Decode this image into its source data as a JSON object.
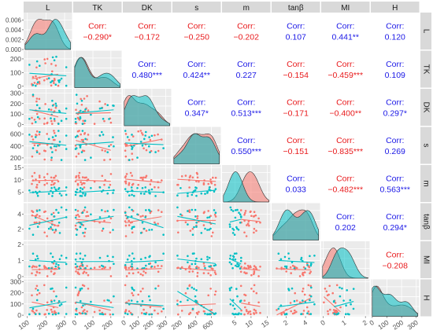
{
  "chart_data": {
    "type": "scatter_matrix",
    "variables": [
      "L",
      "TK",
      "DK",
      "s",
      "m",
      "tanβ",
      "MI",
      "H"
    ],
    "ranges": [
      [
        80,
        340
      ],
      [
        -10,
        260
      ],
      [
        -10,
        340
      ],
      [
        100,
        720
      ],
      [
        1,
        16
      ],
      [
        0.5,
        5.5
      ],
      [
        -0.1,
        2.2
      ],
      [
        -10,
        320
      ]
    ],
    "tick_labels": {
      "L": [
        "100",
        "200",
        "300"
      ],
      "TK": [
        "0",
        "100",
        "200"
      ],
      "DK": [
        "0",
        "100",
        "200",
        "300"
      ],
      "s": [
        "200",
        "400",
        "600"
      ],
      "m": [
        "5",
        "10",
        "15"
      ],
      "tanβ": [
        "2",
        "4"
      ],
      "MI": [
        "0",
        "1",
        "2"
      ],
      "H": [
        "0",
        "100",
        "200",
        "300"
      ]
    },
    "tick_values": {
      "L": [
        100,
        200,
        300
      ],
      "TK": [
        0,
        100,
        200
      ],
      "DK": [
        0,
        100,
        200,
        300
      ],
      "s": [
        200,
        400,
        600
      ],
      "m": [
        5,
        10,
        15
      ],
      "tanβ": [
        2,
        4
      ],
      "MI": [
        0,
        1,
        2
      ],
      "H": [
        0,
        100,
        200,
        300
      ]
    },
    "left_ticks": {
      "L": [
        "0.000",
        "0.002",
        "0.004",
        "0.006"
      ],
      "TK": [
        "0",
        "100",
        "200"
      ],
      "DK": [
        "0",
        "100",
        "200",
        "300"
      ],
      "s": [
        "200",
        "400",
        "600"
      ],
      "m": [
        "5",
        "10",
        "15"
      ],
      "tanβ": [
        "2",
        "4"
      ],
      "MI": [
        "0",
        "1",
        "2"
      ],
      "H": [
        "0",
        "100",
        "200",
        "300"
      ]
    },
    "density_ticks": [
      0.0,
      0.002,
      0.004,
      0.006
    ],
    "density_max": 0.0075,
    "series_colors": [
      "#f8766d",
      "#00bfc4"
    ],
    "correlations": [
      {
        "row": 0,
        "col": 1,
        "label": "Corr:",
        "value": "−0.290*"
      },
      {
        "row": 0,
        "col": 2,
        "label": "Corr:",
        "value": "−0.172"
      },
      {
        "row": 0,
        "col": 3,
        "label": "Corr:",
        "value": "−0.250"
      },
      {
        "row": 0,
        "col": 4,
        "label": "Corr:",
        "value": "−0.202"
      },
      {
        "row": 0,
        "col": 5,
        "label": "Corr:",
        "value": "0.107"
      },
      {
        "row": 0,
        "col": 6,
        "label": "Corr:",
        "value": "0.441**"
      },
      {
        "row": 0,
        "col": 7,
        "label": "Corr:",
        "value": "0.120"
      },
      {
        "row": 1,
        "col": 2,
        "label": "Corr:",
        "value": "0.480***"
      },
      {
        "row": 1,
        "col": 3,
        "label": "Corr:",
        "value": "0.424**"
      },
      {
        "row": 1,
        "col": 4,
        "label": "Corr:",
        "value": "0.227"
      },
      {
        "row": 1,
        "col": 5,
        "label": "Corr:",
        "value": "−0.154"
      },
      {
        "row": 1,
        "col": 6,
        "label": "Corr:",
        "value": "−0.459***"
      },
      {
        "row": 1,
        "col": 7,
        "label": "Corr:",
        "value": "0.109"
      },
      {
        "row": 2,
        "col": 3,
        "label": "Corr:",
        "value": "0.347*"
      },
      {
        "row": 2,
        "col": 4,
        "label": "Corr:",
        "value": "0.513***"
      },
      {
        "row": 2,
        "col": 5,
        "label": "Corr:",
        "value": "−0.171"
      },
      {
        "row": 2,
        "col": 6,
        "label": "Corr:",
        "value": "−0.400**"
      },
      {
        "row": 2,
        "col": 7,
        "label": "Corr:",
        "value": "0.297*"
      },
      {
        "row": 3,
        "col": 4,
        "label": "Corr:",
        "value": "0.550***"
      },
      {
        "row": 3,
        "col": 5,
        "label": "Corr:",
        "value": "−0.151"
      },
      {
        "row": 3,
        "col": 6,
        "label": "Corr:",
        "value": "−0.835***"
      },
      {
        "row": 3,
        "col": 7,
        "label": "Corr:",
        "value": "0.269"
      },
      {
        "row": 4,
        "col": 5,
        "label": "Corr:",
        "value": "0.033"
      },
      {
        "row": 4,
        "col": 6,
        "label": "Corr:",
        "value": "−0.482***"
      },
      {
        "row": 4,
        "col": 7,
        "label": "Corr:",
        "value": "0.563***"
      },
      {
        "row": 5,
        "col": 6,
        "label": "Corr:",
        "value": "0.202"
      },
      {
        "row": 5,
        "col": 7,
        "label": "Corr:",
        "value": "0.294*"
      },
      {
        "row": 6,
        "col": 7,
        "label": "Corr:",
        "value": "−0.208"
      }
    ],
    "correlation_colors": {
      "negative": "#e8191b",
      "positive": "#1a17e6"
    },
    "grid": true,
    "panel_background": "#ebebeb",
    "strip_background": "#d9d9d9"
  }
}
